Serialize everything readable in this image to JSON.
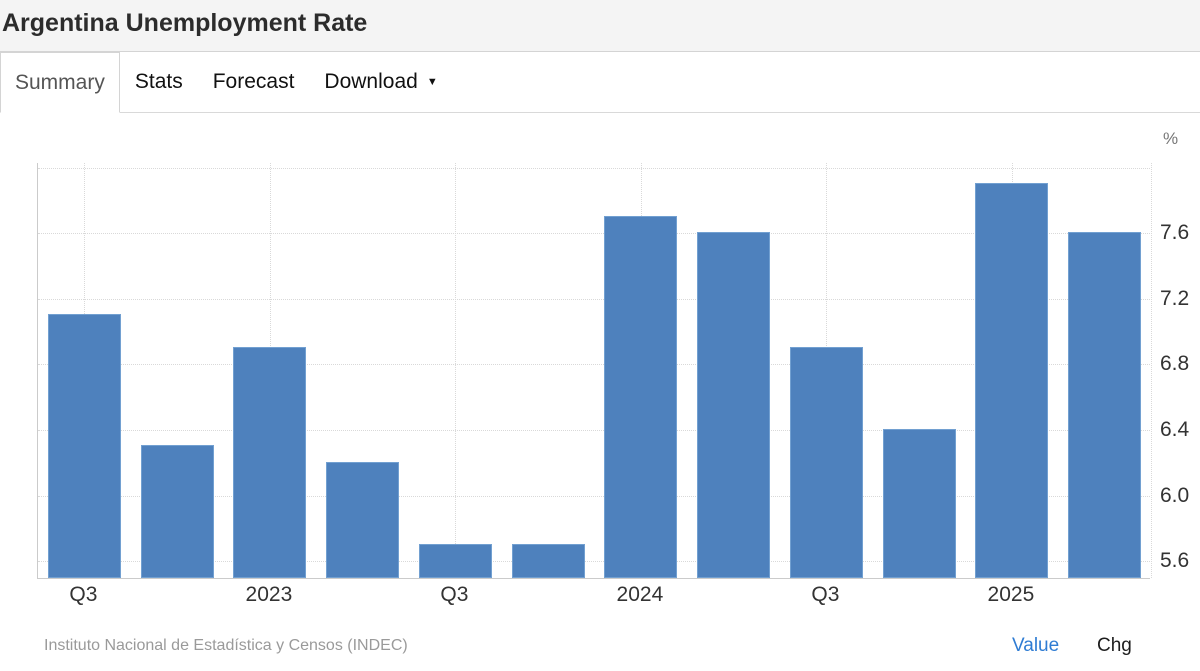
{
  "header": {
    "title": "Argentina Unemployment Rate"
  },
  "tabs": [
    {
      "label": "Summary",
      "active": true
    },
    {
      "label": "Stats",
      "active": false
    },
    {
      "label": "Forecast",
      "active": false
    },
    {
      "label": "Download",
      "active": false,
      "caret": "▼"
    }
  ],
  "chart_data": {
    "type": "bar",
    "title": "Argentina Unemployment Rate",
    "categories": [
      "Q3 2022",
      "Q4 2022",
      "Q1 2023",
      "Q2 2023",
      "Q3 2023",
      "Q4 2023",
      "Q1 2024",
      "Q2 2024",
      "Q3 2024",
      "Q4 2024",
      "Q1 2025",
      "Q2 2025"
    ],
    "values": [
      7.1,
      6.3,
      6.9,
      6.2,
      5.7,
      5.7,
      7.7,
      7.6,
      6.9,
      6.4,
      7.9,
      7.6
    ],
    "x_tick_labels": [
      "Q3",
      "2023",
      "Q3",
      "2024",
      "Q3",
      "2025"
    ],
    "x_tick_every": 2,
    "y_ticks": [
      "7.6",
      "7.2",
      "6.8",
      "6.4",
      "6.0",
      "5.6"
    ],
    "y_gridlines": [
      8.0,
      7.6,
      7.2,
      6.8,
      6.4,
      6.0,
      5.6
    ],
    "ylim": [
      5.49,
      8.03
    ],
    "y_unit_label": "%",
    "bar_color": "#4e81bd",
    "bar_border_color": "#72a0d1",
    "grid": "dotted",
    "legend_position": "none",
    "source": "Instituto Nacional de Estadística y Censos (INDEC)"
  },
  "footer": {
    "source": "Instituto Nacional de Estadística y Censos (INDEC)",
    "links": [
      {
        "label": "Value",
        "active": true,
        "color": "#2f7cd3"
      },
      {
        "label": "Chg",
        "active": false,
        "color": "#1d1d1d"
      }
    ]
  }
}
